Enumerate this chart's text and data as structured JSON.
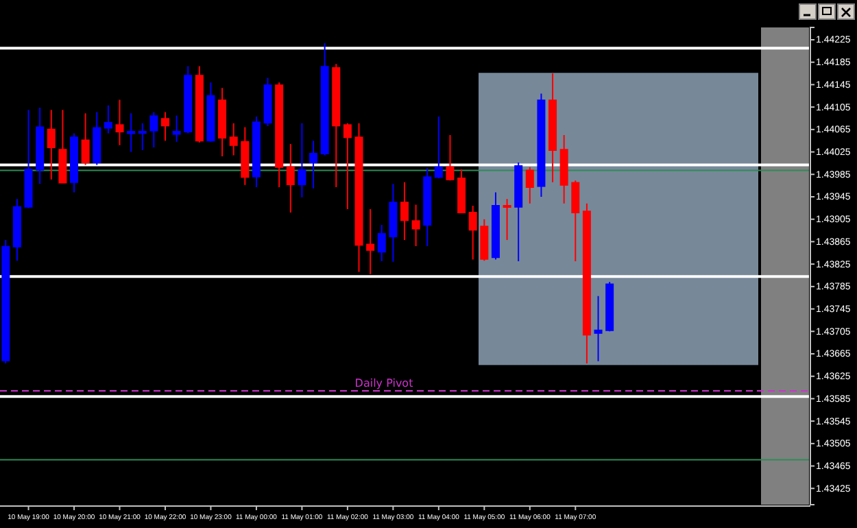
{
  "chart_data": {
    "type": "candlestick",
    "categories": [
      null,
      null,
      "10 May 19:00",
      null,
      null,
      null,
      "10 May 20:00",
      null,
      null,
      null,
      "10 May 21:00",
      null,
      null,
      null,
      "10 May 22:00",
      null,
      null,
      null,
      "10 May 23:00",
      null,
      null,
      null,
      "11 May 00:00",
      null,
      null,
      null,
      "11 May 01:00",
      null,
      null,
      null,
      "11 May 02:00",
      null,
      null,
      null,
      "11 May 03:00",
      null,
      null,
      null,
      "11 May 04:00",
      null,
      null,
      null,
      "11 May 05:00",
      null,
      null,
      null,
      "11 May 06:00",
      null,
      null,
      null,
      "11 May 07:00",
      null,
      null,
      null,
      null,
      null,
      null,
      null,
      null,
      null,
      null,
      null,
      null,
      null,
      null,
      null,
      null,
      null,
      null,
      null,
      null
    ],
    "ohlc": [
      [
        1.43653,
        1.43868,
        1.43648,
        1.43856
      ],
      [
        1.43856,
        1.43941,
        1.43831,
        1.43927
      ],
      [
        1.43927,
        1.441,
        1.43925,
        1.43994
      ],
      [
        1.43993,
        1.44104,
        1.43968,
        1.44069
      ],
      [
        1.44065,
        1.441,
        1.43976,
        1.44033
      ],
      [
        1.44029,
        1.441,
        1.4397,
        1.4397
      ],
      [
        1.43971,
        1.44058,
        1.43953,
        1.44051
      ],
      [
        1.44046,
        1.44094,
        1.44002,
        1.44006
      ],
      [
        1.44006,
        1.44096,
        1.44002,
        1.44068
      ],
      [
        1.44068,
        1.44108,
        1.44058,
        1.44077
      ],
      [
        1.44073,
        1.44118,
        1.44037,
        1.44061
      ],
      [
        1.44058,
        1.44094,
        1.44025,
        1.44061
      ],
      [
        1.44059,
        1.44076,
        1.44028,
        1.44061
      ],
      [
        1.44063,
        1.44096,
        1.44033,
        1.44089
      ],
      [
        1.44084,
        1.44096,
        1.44045,
        1.44072
      ],
      [
        1.44057,
        1.4409,
        1.44043,
        1.44061
      ],
      [
        1.44061,
        1.44178,
        1.44058,
        1.44161
      ],
      [
        1.44161,
        1.44178,
        1.44042,
        1.44045
      ],
      [
        1.44045,
        1.44149,
        1.44043,
        1.44125
      ],
      [
        1.44117,
        1.44139,
        1.44017,
        1.4405
      ],
      [
        1.44051,
        1.44076,
        1.44019,
        1.44037
      ],
      [
        1.44043,
        1.44069,
        1.43966,
        1.4398
      ],
      [
        1.43981,
        1.44088,
        1.43962,
        1.44078
      ],
      [
        1.44077,
        1.44157,
        1.44071,
        1.44144
      ],
      [
        1.44144,
        1.44149,
        1.43962,
        1.43998
      ],
      [
        1.43998,
        1.44039,
        1.43917,
        1.43967
      ],
      [
        1.43967,
        1.44076,
        1.43944,
        1.43993
      ],
      [
        1.44006,
        1.44045,
        1.4396,
        1.44022
      ],
      [
        1.44022,
        1.44219,
        1.44019,
        1.44177
      ],
      [
        1.44175,
        1.44182,
        1.43962,
        1.44072
      ],
      [
        1.44073,
        1.44076,
        1.43923,
        1.44051
      ],
      [
        1.44051,
        1.44076,
        1.43811,
        1.43859
      ],
      [
        1.4386,
        1.43923,
        1.43807,
        1.4385
      ],
      [
        1.43847,
        1.43895,
        1.4383,
        1.43879
      ],
      [
        1.43874,
        1.43968,
        1.43829,
        1.43935
      ],
      [
        1.43935,
        1.43971,
        1.43868,
        1.43903
      ],
      [
        1.43902,
        1.43931,
        1.43857,
        1.43888
      ],
      [
        1.43895,
        1.43996,
        1.43857,
        1.4398
      ],
      [
        1.4398,
        1.44088,
        1.43978,
        1.43998
      ],
      [
        1.43998,
        1.44055,
        1.43974,
        1.43976
      ],
      [
        1.43978,
        1.43994,
        1.43917,
        1.43917
      ],
      [
        1.43917,
        1.43929,
        1.43833,
        1.43886
      ],
      [
        1.43892,
        1.43905,
        1.43831,
        1.43834
      ],
      [
        1.43837,
        1.43953,
        1.43833,
        1.43929
      ],
      [
        1.43929,
        1.43941,
        1.43868,
        1.43927
      ],
      [
        1.43927,
        1.44006,
        1.4383,
        1.44
      ],
      [
        1.43992,
        1.43998,
        1.43933,
        1.43962
      ],
      [
        1.43964,
        1.44129,
        1.43945,
        1.44117
      ],
      [
        1.44117,
        1.44165,
        1.43971,
        1.44028
      ],
      [
        1.44029,
        1.44055,
        1.43933,
        1.43966
      ],
      [
        1.4397,
        1.43974,
        1.4383,
        1.43917
      ],
      [
        1.43919,
        1.43933,
        1.43648,
        1.43699
      ],
      [
        1.43702,
        1.43768,
        1.43652,
        1.43707
      ],
      [
        1.43707,
        1.43793,
        1.43705,
        1.43789
      ],
      null,
      null,
      null,
      null,
      null,
      null,
      null,
      null,
      null,
      null,
      null,
      null,
      null,
      null,
      null,
      null,
      null
    ],
    "colors": [
      "#0000ff",
      "#0000ff",
      "#0000ff",
      "#0000ff",
      "#ff0000",
      "#ff0000",
      "#0000ff",
      "#ff0000",
      "#0000ff",
      "#0000ff",
      "#ff0000",
      "#0000ff",
      "#0000ff",
      "#0000ff",
      "#ff0000",
      "#0000ff",
      "#0000ff",
      "#ff0000",
      "#0000ff",
      "#ff0000",
      "#ff0000",
      "#ff0000",
      "#0000ff",
      "#0000ff",
      "#ff0000",
      "#ff0000",
      "#0000ff",
      "#0000ff",
      "#0000ff",
      "#ff0000",
      "#ff0000",
      "#ff0000",
      "#ff0000",
      "#0000ff",
      "#0000ff",
      "#ff0000",
      "#ff0000",
      "#0000ff",
      "#0000ff",
      "#ff0000",
      "#ff0000",
      "#ff0000",
      "#ff0000",
      "#0000ff",
      "#ff0000",
      "#0000ff",
      "#ff0000",
      "#0000ff",
      "#ff0000",
      "#ff0000",
      "#ff0000",
      "#ff0000",
      "#0000ff",
      "#0000ff",
      null,
      null,
      null,
      null,
      null,
      null,
      null,
      null,
      null,
      null,
      null,
      null,
      null,
      null,
      null,
      null,
      null
    ],
    "ylim": [
      1.43396,
      1.44247
    ],
    "yticks": [
      {
        "value": 1.44225,
        "label": "1.44225"
      },
      {
        "value": 1.44185,
        "label": "1.44185"
      },
      {
        "value": 1.44145,
        "label": "1.44145"
      },
      {
        "value": 1.44105,
        "label": "1.44105"
      },
      {
        "value": 1.44065,
        "label": "1.44065"
      },
      {
        "value": 1.44025,
        "label": "1.44025"
      },
      {
        "value": 1.43985,
        "label": "1.43985"
      },
      {
        "value": 1.43945,
        "label": "1.43945"
      },
      {
        "value": 1.43905,
        "label": "1.43905"
      },
      {
        "value": 1.43865,
        "label": "1.43865"
      },
      {
        "value": 1.43825,
        "label": "1.43825"
      },
      {
        "value": 1.43785,
        "label": "1.43785"
      },
      {
        "value": 1.43745,
        "label": "1.43745"
      },
      {
        "value": 1.43705,
        "label": "1.43705"
      },
      {
        "value": 1.43665,
        "label": "1.43665"
      },
      {
        "value": 1.43625,
        "label": "1.43625"
      },
      {
        "value": 1.43585,
        "label": "1.43585"
      },
      {
        "value": 1.43545,
        "label": "1.43545"
      },
      {
        "value": 1.43505,
        "label": "1.43505"
      },
      {
        "value": 1.43465,
        "label": "1.43465"
      },
      {
        "value": 1.43425,
        "label": "1.43425"
      }
    ],
    "ref_lines": [
      {
        "axis": "y",
        "value": 1.4421,
        "color": "#ffffff"
      },
      {
        "axis": "y",
        "value": 1.44002,
        "color": "#ffffff"
      },
      {
        "axis": "y",
        "value": 1.43992,
        "color": "#2e8b57"
      },
      {
        "axis": "y",
        "value": 1.43803,
        "color": "#ffffff"
      },
      {
        "axis": "y",
        "value": 1.43599,
        "color": "#cc33cc",
        "line_style": "dashed",
        "label": "Daily Pivot"
      },
      {
        "axis": "y",
        "value": 1.43589,
        "color": "#ffffff"
      },
      {
        "axis": "y",
        "value": 1.43476,
        "color": "#2e8b57"
      }
    ],
    "bands": [
      {
        "axis": "y",
        "from": 1.43645,
        "to": 1.44166,
        "color": "#778899"
      }
    ],
    "grid": false
  }
}
